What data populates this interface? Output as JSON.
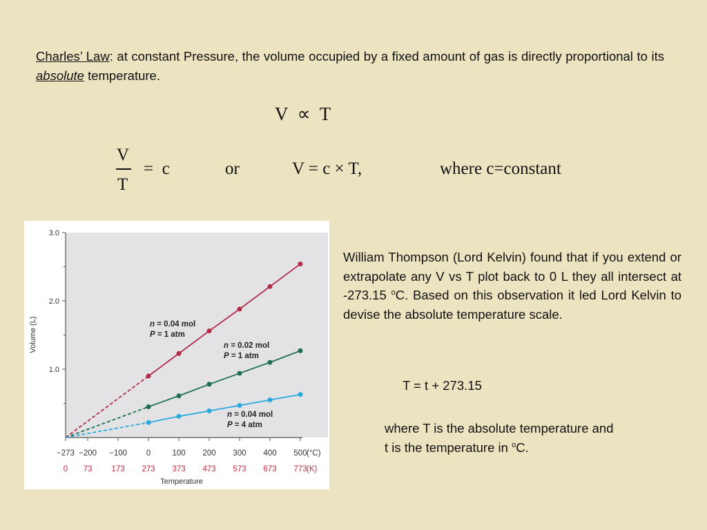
{
  "intro": {
    "term": "Charles’ Law",
    "sep": ":",
    "text_before": " at constant Pressure, the volume occupied by a fixed amount of gas is directly proportional to its ",
    "emph": "absolute",
    "text_after": " temperature."
  },
  "equations": {
    "proportional": "V  ∝  T",
    "frac_num": "V",
    "frac_den": "T",
    "eq_c": "=  c",
    "or": "or",
    "product": "V = c × T,",
    "where": "where c=constant"
  },
  "kelvin": {
    "part1": "William Thompson (Lord Kelvin) found that if you extend or extrapolate any V vs T plot back to 0 L they all intersect at -273.15 ",
    "sup": "o",
    "part2": "C.  Based on this observation it led Lord Kelvin to devise the absolute temperature scale."
  },
  "formula": "T = t + 273.15",
  "where_note": {
    "line1": "where T is the absolute temperature and",
    "line2_prefix": "t is the temperature in ",
    "sup": "o",
    "line2_suffix": "C."
  },
  "chart_data": {
    "type": "line",
    "xlabel": "Temperature",
    "ylabel": "Volume (L)",
    "x_celsius_ticks": [
      "−273",
      "−200",
      "−100",
      "0",
      "100",
      "200",
      "300",
      "400",
      "500"
    ],
    "x_celsius_unit": "(°C)",
    "x_kelvin_ticks": [
      "0",
      "73",
      "173",
      "273",
      "373",
      "473",
      "573",
      "673",
      "773"
    ],
    "x_kelvin_unit": "(K)",
    "y_ticks": [
      "1.0",
      "2.0",
      "3.0"
    ],
    "xlim": [
      -273,
      500
    ],
    "ylim": [
      0,
      3.0
    ],
    "extrapolated_style": "dashed",
    "series": [
      {
        "name_n": "n",
        "name_n_value": " = 0.04 mol",
        "name_p": "P",
        "name_p_value": " = 1 atm",
        "color": "#b22a47",
        "x": [
          0,
          100,
          200,
          300,
          400,
          500
        ],
        "values": [
          0.9,
          1.23,
          1.56,
          1.88,
          2.21,
          2.54
        ]
      },
      {
        "name_n": "n",
        "name_n_value": " = 0.02 mol",
        "name_p": "P",
        "name_p_value": " = 1 atm",
        "color": "#1d6e52",
        "x": [
          0,
          100,
          200,
          300,
          400,
          500
        ],
        "values": [
          0.45,
          0.61,
          0.78,
          0.94,
          1.1,
          1.27
        ]
      },
      {
        "name_n": "n",
        "name_n_value": " = 0.04 mol",
        "name_p": "P",
        "name_p_value": " = 4 atm",
        "color": "#29a8dc",
        "x": [
          0,
          100,
          200,
          300,
          400,
          500
        ],
        "values": [
          0.22,
          0.31,
          0.39,
          0.47,
          0.55,
          0.63
        ]
      }
    ],
    "colors": {
      "plot_bg": "#e3e3e6",
      "axis": "#555555",
      "kelvin_ticks": "#c2283f"
    }
  }
}
